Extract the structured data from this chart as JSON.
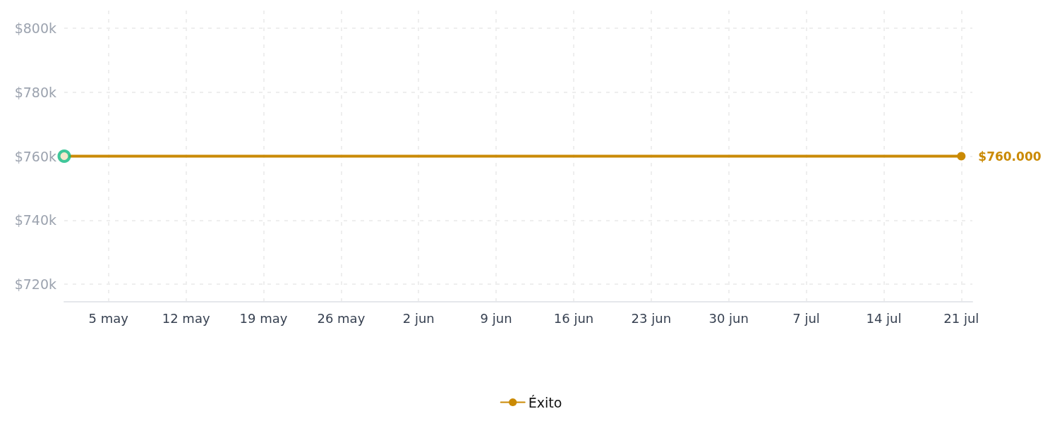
{
  "chart_data": {
    "type": "line",
    "x": [
      "--05-01",
      "--07-21"
    ],
    "xlim": [
      "--05-01",
      "--07-22"
    ],
    "xticks": [
      {
        "value": "--05-05",
        "label": "5 may"
      },
      {
        "value": "--05-12",
        "label": "12 may"
      },
      {
        "value": "--05-19",
        "label": "19 may"
      },
      {
        "value": "--05-26",
        "label": "26 may"
      },
      {
        "value": "--06-02",
        "label": "2 jun"
      },
      {
        "value": "--06-09",
        "label": "9 jun"
      },
      {
        "value": "--06-16",
        "label": "16 jun"
      },
      {
        "value": "--06-23",
        "label": "23 jun"
      },
      {
        "value": "--06-30",
        "label": "30 jun"
      },
      {
        "value": "--07-07",
        "label": "7 jul"
      },
      {
        "value": "--07-14",
        "label": "14 jul"
      },
      {
        "value": "--07-21",
        "label": "21 jul"
      }
    ],
    "ylim": [
      714500,
      805500
    ],
    "yticks": [
      {
        "value": 720000,
        "label": "$720k"
      },
      {
        "value": 740000,
        "label": "$740k"
      },
      {
        "value": 760000,
        "label": "$760k"
      },
      {
        "value": 780000,
        "label": "$780k"
      },
      {
        "value": 800000,
        "label": "$800k"
      }
    ],
    "grid": true,
    "legend": "bottom",
    "marker": "circle",
    "line_style": "solid",
    "series": [
      {
        "name": "Éxito",
        "color": "#ca8a04",
        "values": [
          760000,
          760000
        ],
        "value_labels": [
          null,
          "$760.000"
        ]
      },
      {
        "type": "scatter",
        "color": "#10b981",
        "x": [
          "--05-01"
        ],
        "values": [
          760000
        ]
      }
    ]
  }
}
